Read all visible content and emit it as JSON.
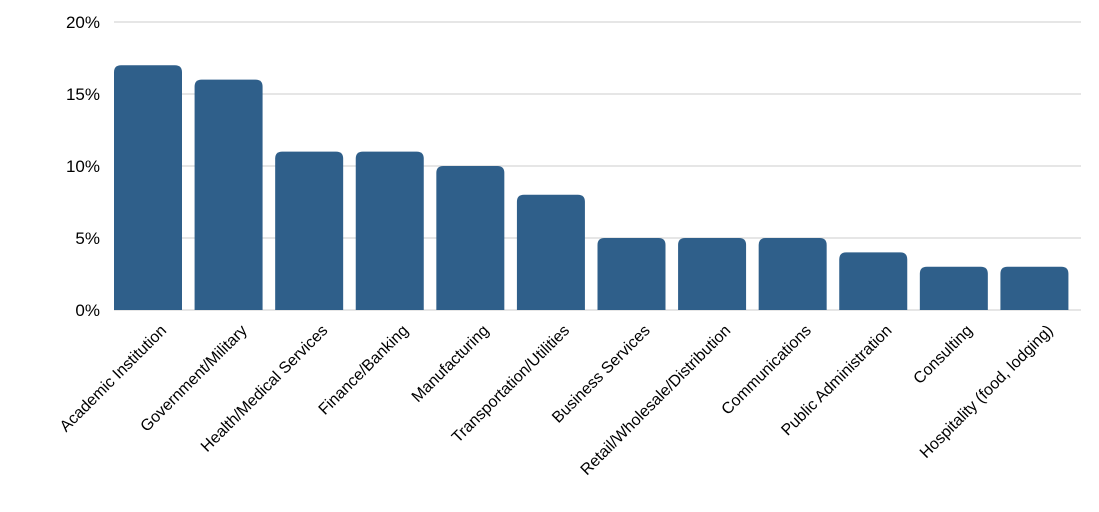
{
  "chart_data": {
    "type": "bar",
    "title": "",
    "xlabel": "",
    "ylabel": "",
    "ylim": [
      0,
      20
    ],
    "y_ticks": [
      0,
      5,
      10,
      15,
      20
    ],
    "y_tick_labels": [
      "0%",
      "5%",
      "10%",
      "15%",
      "20%"
    ],
    "grid": "horizontal",
    "legend": "none",
    "categories": [
      "Academic Institution",
      "Government/Military",
      "Health/Medical Services",
      "Finance/Banking",
      "Manufacturing",
      "Transportation/Utilities",
      "Business Services",
      "Retail/Wholesale/Distribution",
      "Communications",
      "Public Administration",
      "Consulting",
      "Hospitality (food, lodging)"
    ],
    "values": [
      17,
      16,
      11,
      11,
      10,
      8,
      5,
      5,
      5,
      4,
      3,
      3
    ],
    "colors": {
      "bar": "#2f5f8a",
      "grid": "#cccccc",
      "text": "#000000"
    }
  }
}
